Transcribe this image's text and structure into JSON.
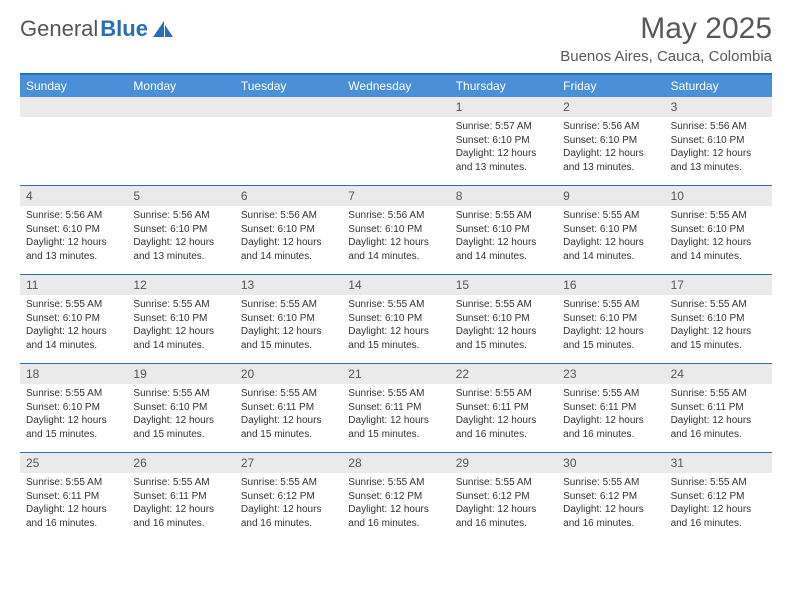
{
  "logo": {
    "text1": "General",
    "text2": "Blue"
  },
  "title": "May 2025",
  "location": "Buenos Aires, Cauca, Colombia",
  "header_bg": "#4a90d9",
  "border_color": "#2a6db8",
  "daynum_bg": "#eaeaea",
  "weekdays": [
    "Sunday",
    "Monday",
    "Tuesday",
    "Wednesday",
    "Thursday",
    "Friday",
    "Saturday"
  ],
  "weeks": [
    [
      {
        "num": "",
        "sunrise": "",
        "sunset": "",
        "daylight": ""
      },
      {
        "num": "",
        "sunrise": "",
        "sunset": "",
        "daylight": ""
      },
      {
        "num": "",
        "sunrise": "",
        "sunset": "",
        "daylight": ""
      },
      {
        "num": "",
        "sunrise": "",
        "sunset": "",
        "daylight": ""
      },
      {
        "num": "1",
        "sunrise": "Sunrise: 5:57 AM",
        "sunset": "Sunset: 6:10 PM",
        "daylight": "Daylight: 12 hours and 13 minutes."
      },
      {
        "num": "2",
        "sunrise": "Sunrise: 5:56 AM",
        "sunset": "Sunset: 6:10 PM",
        "daylight": "Daylight: 12 hours and 13 minutes."
      },
      {
        "num": "3",
        "sunrise": "Sunrise: 5:56 AM",
        "sunset": "Sunset: 6:10 PM",
        "daylight": "Daylight: 12 hours and 13 minutes."
      }
    ],
    [
      {
        "num": "4",
        "sunrise": "Sunrise: 5:56 AM",
        "sunset": "Sunset: 6:10 PM",
        "daylight": "Daylight: 12 hours and 13 minutes."
      },
      {
        "num": "5",
        "sunrise": "Sunrise: 5:56 AM",
        "sunset": "Sunset: 6:10 PM",
        "daylight": "Daylight: 12 hours and 13 minutes."
      },
      {
        "num": "6",
        "sunrise": "Sunrise: 5:56 AM",
        "sunset": "Sunset: 6:10 PM",
        "daylight": "Daylight: 12 hours and 14 minutes."
      },
      {
        "num": "7",
        "sunrise": "Sunrise: 5:56 AM",
        "sunset": "Sunset: 6:10 PM",
        "daylight": "Daylight: 12 hours and 14 minutes."
      },
      {
        "num": "8",
        "sunrise": "Sunrise: 5:55 AM",
        "sunset": "Sunset: 6:10 PM",
        "daylight": "Daylight: 12 hours and 14 minutes."
      },
      {
        "num": "9",
        "sunrise": "Sunrise: 5:55 AM",
        "sunset": "Sunset: 6:10 PM",
        "daylight": "Daylight: 12 hours and 14 minutes."
      },
      {
        "num": "10",
        "sunrise": "Sunrise: 5:55 AM",
        "sunset": "Sunset: 6:10 PM",
        "daylight": "Daylight: 12 hours and 14 minutes."
      }
    ],
    [
      {
        "num": "11",
        "sunrise": "Sunrise: 5:55 AM",
        "sunset": "Sunset: 6:10 PM",
        "daylight": "Daylight: 12 hours and 14 minutes."
      },
      {
        "num": "12",
        "sunrise": "Sunrise: 5:55 AM",
        "sunset": "Sunset: 6:10 PM",
        "daylight": "Daylight: 12 hours and 14 minutes."
      },
      {
        "num": "13",
        "sunrise": "Sunrise: 5:55 AM",
        "sunset": "Sunset: 6:10 PM",
        "daylight": "Daylight: 12 hours and 15 minutes."
      },
      {
        "num": "14",
        "sunrise": "Sunrise: 5:55 AM",
        "sunset": "Sunset: 6:10 PM",
        "daylight": "Daylight: 12 hours and 15 minutes."
      },
      {
        "num": "15",
        "sunrise": "Sunrise: 5:55 AM",
        "sunset": "Sunset: 6:10 PM",
        "daylight": "Daylight: 12 hours and 15 minutes."
      },
      {
        "num": "16",
        "sunrise": "Sunrise: 5:55 AM",
        "sunset": "Sunset: 6:10 PM",
        "daylight": "Daylight: 12 hours and 15 minutes."
      },
      {
        "num": "17",
        "sunrise": "Sunrise: 5:55 AM",
        "sunset": "Sunset: 6:10 PM",
        "daylight": "Daylight: 12 hours and 15 minutes."
      }
    ],
    [
      {
        "num": "18",
        "sunrise": "Sunrise: 5:55 AM",
        "sunset": "Sunset: 6:10 PM",
        "daylight": "Daylight: 12 hours and 15 minutes."
      },
      {
        "num": "19",
        "sunrise": "Sunrise: 5:55 AM",
        "sunset": "Sunset: 6:10 PM",
        "daylight": "Daylight: 12 hours and 15 minutes."
      },
      {
        "num": "20",
        "sunrise": "Sunrise: 5:55 AM",
        "sunset": "Sunset: 6:11 PM",
        "daylight": "Daylight: 12 hours and 15 minutes."
      },
      {
        "num": "21",
        "sunrise": "Sunrise: 5:55 AM",
        "sunset": "Sunset: 6:11 PM",
        "daylight": "Daylight: 12 hours and 15 minutes."
      },
      {
        "num": "22",
        "sunrise": "Sunrise: 5:55 AM",
        "sunset": "Sunset: 6:11 PM",
        "daylight": "Daylight: 12 hours and 16 minutes."
      },
      {
        "num": "23",
        "sunrise": "Sunrise: 5:55 AM",
        "sunset": "Sunset: 6:11 PM",
        "daylight": "Daylight: 12 hours and 16 minutes."
      },
      {
        "num": "24",
        "sunrise": "Sunrise: 5:55 AM",
        "sunset": "Sunset: 6:11 PM",
        "daylight": "Daylight: 12 hours and 16 minutes."
      }
    ],
    [
      {
        "num": "25",
        "sunrise": "Sunrise: 5:55 AM",
        "sunset": "Sunset: 6:11 PM",
        "daylight": "Daylight: 12 hours and 16 minutes."
      },
      {
        "num": "26",
        "sunrise": "Sunrise: 5:55 AM",
        "sunset": "Sunset: 6:11 PM",
        "daylight": "Daylight: 12 hours and 16 minutes."
      },
      {
        "num": "27",
        "sunrise": "Sunrise: 5:55 AM",
        "sunset": "Sunset: 6:12 PM",
        "daylight": "Daylight: 12 hours and 16 minutes."
      },
      {
        "num": "28",
        "sunrise": "Sunrise: 5:55 AM",
        "sunset": "Sunset: 6:12 PM",
        "daylight": "Daylight: 12 hours and 16 minutes."
      },
      {
        "num": "29",
        "sunrise": "Sunrise: 5:55 AM",
        "sunset": "Sunset: 6:12 PM",
        "daylight": "Daylight: 12 hours and 16 minutes."
      },
      {
        "num": "30",
        "sunrise": "Sunrise: 5:55 AM",
        "sunset": "Sunset: 6:12 PM",
        "daylight": "Daylight: 12 hours and 16 minutes."
      },
      {
        "num": "31",
        "sunrise": "Sunrise: 5:55 AM",
        "sunset": "Sunset: 6:12 PM",
        "daylight": "Daylight: 12 hours and 16 minutes."
      }
    ]
  ]
}
